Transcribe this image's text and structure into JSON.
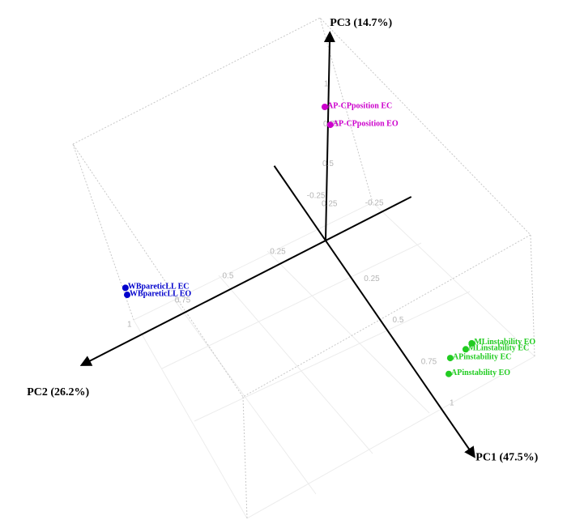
{
  "chart_data": {
    "type": "scatter3d",
    "xlabel": "PC1 (47.5%)",
    "ylabel": "PC2 (26.2%)",
    "zlabel": "PC3 (14.7%)",
    "xlim": [
      -0.45,
      1.3
    ],
    "ylim": [
      -0.45,
      1.28
    ],
    "zlim": [
      0,
      1.3
    ],
    "xticks": [
      -0.25,
      0.25,
      0.5,
      0.75,
      1
    ],
    "yticks": [
      -0.25,
      0.25,
      0.5,
      0.75,
      1
    ],
    "zticks": [
      0.25,
      0.5,
      0.75,
      1
    ],
    "series": [
      {
        "color": "#cc00cc",
        "labels": [
          "AP-CPposition EC",
          "AP-CPposition EO"
        ],
        "x": [
          0.05,
          0.1
        ],
        "y": [
          0.05,
          0.05
        ],
        "z": [
          0.92,
          0.86
        ]
      },
      {
        "color": "#0000cc",
        "labels": [
          "WBpareticLL EC",
          "WBpareticLL EO"
        ],
        "x": [
          0.1,
          0.1
        ],
        "y": [
          1.12,
          1.11
        ],
        "z": [
          0.49,
          0.44
        ]
      },
      {
        "color": "#22cc22",
        "labels": [
          "MLinstability EO",
          "MLinstability EC",
          "APinstability EC",
          "APinstability EO"
        ],
        "x": [
          1.1,
          1.05,
          0.92,
          0.91
        ],
        "y": [
          -0.1,
          -0.1,
          -0.1,
          -0.1
        ],
        "z": [
          0.44,
          0.35,
          0.16,
          0.05
        ]
      }
    ]
  }
}
